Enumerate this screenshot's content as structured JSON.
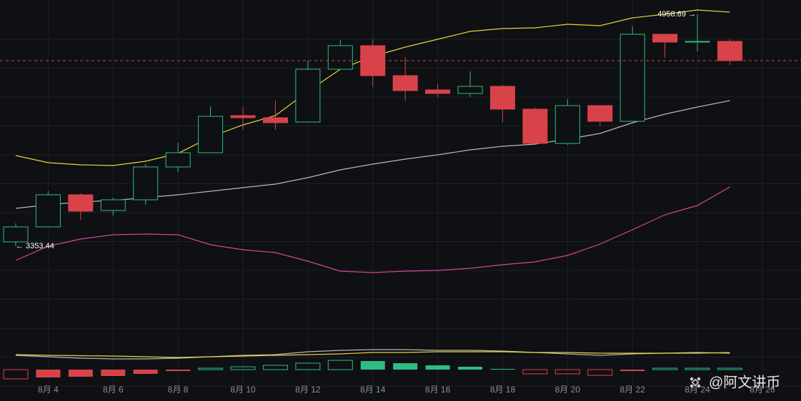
{
  "chart_data": {
    "type": "candlestick",
    "categories": [
      null,
      "8月 4",
      null,
      "8月 6",
      null,
      "8月 8",
      null,
      "8月 10",
      null,
      "8月 12",
      null,
      "8月 14",
      null,
      "8月 16",
      null,
      "8月 18",
      null,
      "8月 20",
      null,
      "8月 22",
      null,
      "8月 24",
      null,
      "8月 26"
    ],
    "open": [
      3383.1,
      3486.8,
      3709.1,
      3600.4,
      3674.5,
      3901.7,
      4000.5,
      4257.3,
      4242.5,
      4212.8,
      4578.3,
      4741.3,
      4533.9,
      4435.1,
      4410.4,
      4459.8,
      4301.7,
      4064.6,
      4326.4,
      4217.8,
      4820.3,
      4766.0,
      4771.0,
      null
    ],
    "high": [
      3511.5,
      3733.8,
      3718.9,
      3689.3,
      3921.4,
      4069.6,
      4321.5,
      4316.5,
      4361.0,
      4637.6,
      4780.8,
      4785.8,
      4662.3,
      4474.6,
      4563.5,
      4469.7,
      4311.6,
      4370.9,
      4326.4,
      4874.7,
      4820.3,
      4958.69,
      4785.8,
      null
    ],
    "low": [
      3353.44,
      3486.8,
      3536.2,
      3565.8,
      3639.9,
      3867.1,
      4000.5,
      4158.5,
      4158.5,
      4212.8,
      4578.3,
      4454.8,
      4361.0,
      4385.7,
      4385.7,
      4212.8,
      4054.8,
      4054.8,
      4188.1,
      4217.8,
      4657.4,
      4701.8,
      4608.0,
      null
    ],
    "close": [
      3486.8,
      3709.1,
      3595.4,
      3674.5,
      3901.7,
      4000.5,
      4252.3,
      4242.5,
      4207.9,
      4578.3,
      4741.3,
      4533.9,
      4430.1,
      4410.4,
      4459.8,
      4301.7,
      4064.6,
      4326.4,
      4217.8,
      4820.3,
      4766.0,
      4771.0,
      4637.6,
      null
    ],
    "up_color": "#2ebd85",
    "down_color": "#d8434a",
    "ylim": [
      2785.4,
      5057.4
    ],
    "bands": [
      {
        "color": "#e8d33a",
        "values": [
          3980.7,
          3931.3,
          3916.5,
          3911.5,
          3941.2,
          3995.5,
          4109.1,
          4193.1,
          4257.3,
          4425.2,
          4578.3,
          4667.2,
          4731.4,
          4785.8,
          4840.1,
          4859.9,
          4864.8,
          4889.5,
          4879.6,
          4933.9,
          4958.7,
          4988.3,
          4973.5,
          null
        ]
      },
      {
        "color": "#b8b8b8",
        "values": [
          3615.2,
          3639.9,
          3659.7,
          3669.5,
          3689.3,
          3709.1,
          3733.8,
          3758.4,
          3783.1,
          3827.6,
          3881.9,
          3921.4,
          3956.0,
          3985.6,
          4020.2,
          4044.9,
          4059.7,
          4094.3,
          4133.8,
          4207.9,
          4267.2,
          4316.5,
          4361.0,
          null
        ]
      },
      {
        "color": "#d6449f",
        "values": [
          3254.6,
          3353.4,
          3402.8,
          3432.4,
          3437.4,
          3432.4,
          3363.3,
          3328.7,
          3308.9,
          3249.7,
          3180.5,
          3170.7,
          3180.5,
          3185.5,
          3200.3,
          3225.0,
          3244.7,
          3289.2,
          3368.2,
          3467.0,
          3570.7,
          3634.9,
          3763.4,
          null
        ]
      }
    ],
    "low_label": {
      "value": 3353.44,
      "label": "← 3353.44"
    },
    "high_label": {
      "value": 4958.69,
      "label": "4958.69 →"
    },
    "histogram": {
      "values": [
        -13,
        -11,
        -10,
        -9,
        -6,
        -2,
        2,
        4,
        6,
        9,
        13,
        12,
        9,
        6,
        4,
        1,
        -6,
        -6,
        -8,
        -2,
        2,
        2,
        2,
        null
      ]
    },
    "y2lim": [
      -22,
      48
    ],
    "macd_lines": [
      {
        "color": "#b8b8b8",
        "values": [
          20,
          18,
          16,
          15,
          15,
          16,
          18,
          20,
          21,
          25,
          27,
          28,
          28,
          27,
          27,
          26,
          24,
          22,
          20,
          22,
          23,
          23,
          24,
          null
        ]
      },
      {
        "color": "#e8d33a",
        "values": [
          21,
          20,
          19.5,
          19,
          18,
          17,
          18,
          19,
          20,
          21,
          22,
          24,
          24,
          25,
          25,
          25,
          24,
          24,
          23,
          23,
          23,
          24,
          23,
          null
        ]
      }
    ],
    "watermark": "@阿文讲币"
  }
}
